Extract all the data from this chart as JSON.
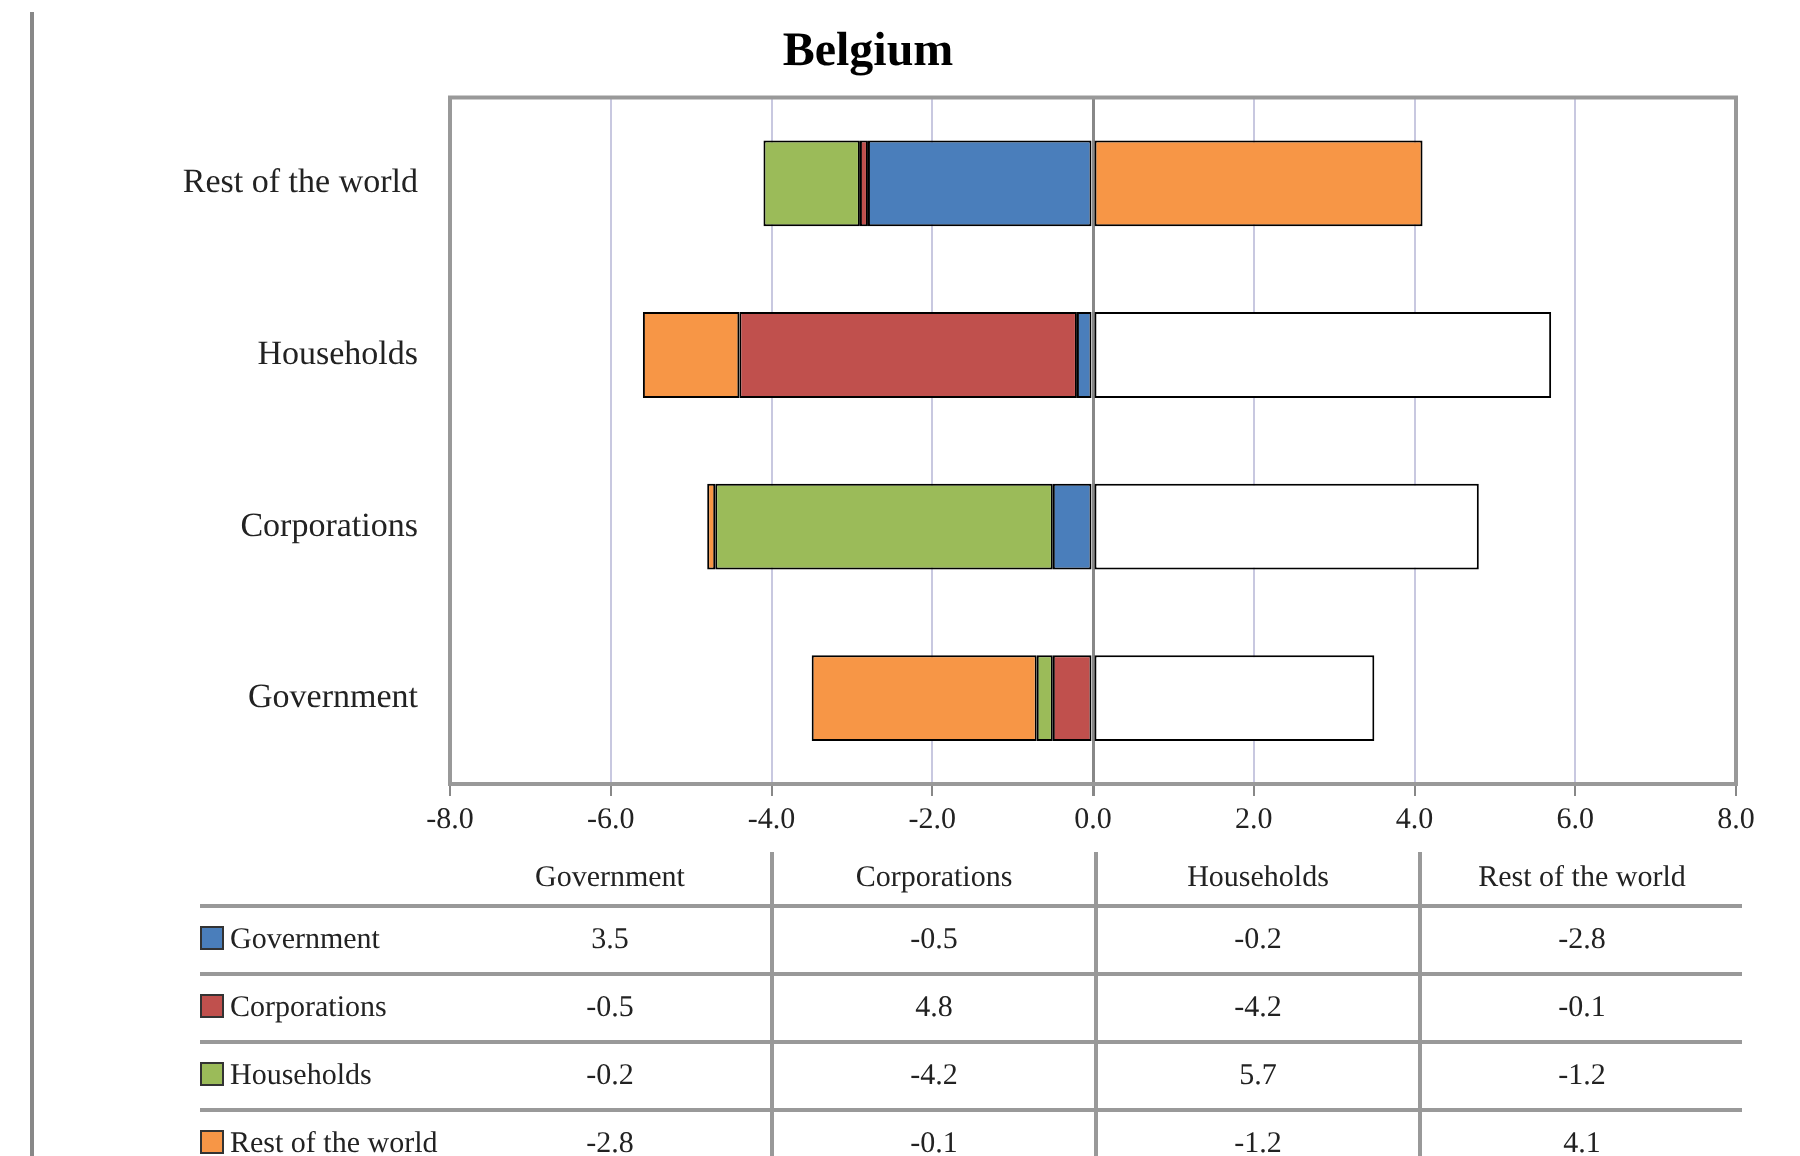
{
  "chart_data": [
    {
      "type": "bar",
      "title": "Belgium",
      "orientation": "horizontal",
      "stacked": true,
      "categories": [
        "Rest of the world",
        "Households",
        "Corporations",
        "Government"
      ],
      "series": [
        {
          "colors": [
            "#4a7ebb",
            "#4a7ebb",
            "#4a7ebb",
            "#ffffff"
          ],
          "values": [
            -2.8,
            -0.2,
            -0.5,
            3.5
          ]
        },
        {
          "colors": [
            "#c0504d",
            "#c0504d",
            "#ffffff",
            "#c0504d"
          ],
          "values": [
            -0.1,
            -4.2,
            4.8,
            -0.5
          ]
        },
        {
          "colors": [
            "#9bbb59",
            "#ffffff",
            "#9bbb59",
            "#9bbb59"
          ],
          "values": [
            -1.2,
            5.7,
            -4.2,
            -0.2
          ]
        },
        {
          "colors": [
            "#f79646",
            "#f79646",
            "#f79646",
            "#f79646"
          ],
          "values": [
            4.1,
            -1.2,
            -0.1,
            -2.8
          ]
        }
      ],
      "xlim": [
        -8,
        8
      ],
      "xticks": [
        {
          "value": -8,
          "label": "-8.0"
        },
        {
          "value": -6,
          "label": "-6.0"
        },
        {
          "value": -4,
          "label": "-4.0"
        },
        {
          "value": -2,
          "label": "-2.0"
        },
        {
          "value": 0,
          "label": "0.0"
        },
        {
          "value": 2,
          "label": "2.0"
        },
        {
          "value": 4,
          "label": "4.0"
        },
        {
          "value": 6,
          "label": "6.0"
        },
        {
          "value": 8,
          "label": "8.0"
        }
      ],
      "grid": "x"
    },
    {
      "type": "other",
      "categories": [
        "Government",
        "Corporations",
        "Households",
        "Rest of the world"
      ],
      "series": [
        {
          "name": "Government",
          "color": "#4a7ebb",
          "values": [
            3.5,
            -0.5,
            -0.2,
            -2.8
          ]
        },
        {
          "name": "Corporations",
          "color": "#c0504d",
          "values": [
            -0.5,
            4.8,
            -4.2,
            -0.1
          ]
        },
        {
          "name": "Households",
          "color": "#9bbb59",
          "values": [
            -0.2,
            -4.2,
            5.7,
            -1.2
          ]
        },
        {
          "name": "Rest of the world",
          "color": "#f79646",
          "values": [
            -2.8,
            -0.1,
            -1.2,
            4.1
          ]
        }
      ],
      "legend": "left",
      "data_labels": true
    }
  ]
}
